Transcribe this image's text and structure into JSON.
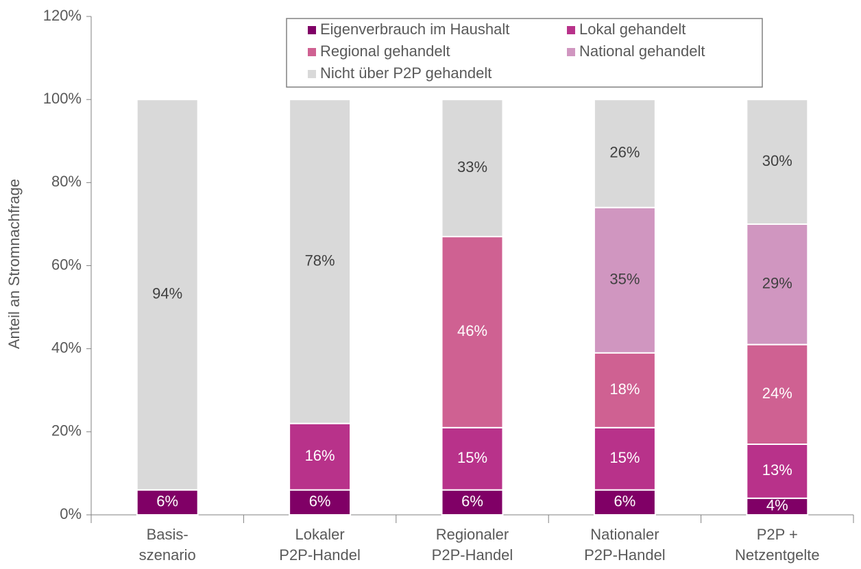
{
  "chart_data": {
    "type": "stacked_bar",
    "y_label": "Anteil an Stromnachfrage",
    "categories": [
      "Basis-\nszenario",
      "Lokaler\nP2P-Handel",
      "Regionaler\nP2P-Handel",
      "Nationaler\nP2P-Handel",
      "P2P +\nNetzentgelte"
    ],
    "series": [
      {
        "name": "Eigenverbrauch im Haushalt",
        "color": "#800066",
        "values": [
          6,
          6,
          6,
          6,
          4
        ],
        "value_labels": [
          "6%",
          "6%",
          "6%",
          "6%",
          "4%"
        ]
      },
      {
        "name": "Lokal gehandelt",
        "color": "#b8328a",
        "values": [
          null,
          16,
          15,
          15,
          13
        ],
        "value_labels": [
          null,
          "16%",
          "15%",
          "15%",
          "13%"
        ]
      },
      {
        "name": "Regional gehandelt",
        "color": "#cf6192",
        "values": [
          null,
          null,
          46,
          18,
          24
        ],
        "value_labels": [
          null,
          null,
          "46%",
          "18%",
          "24%"
        ]
      },
      {
        "name": "National gehandelt",
        "color": "#d096c0",
        "values": [
          null,
          null,
          null,
          35,
          29
        ],
        "value_labels": [
          null,
          null,
          null,
          "35%",
          "29%"
        ]
      },
      {
        "name": "Nicht über P2P gehandelt",
        "color": "#d9d9d9",
        "values": [
          94,
          78,
          33,
          26,
          30
        ],
        "value_labels": [
          "94%",
          "78%",
          "33%",
          "26%",
          "30%"
        ]
      }
    ],
    "ylim": [
      0,
      120
    ],
    "yticks": [
      {
        "value": 0,
        "label": "0%"
      },
      {
        "value": 20,
        "label": "20%"
      },
      {
        "value": 40,
        "label": "40%"
      },
      {
        "value": 60,
        "label": "60%"
      },
      {
        "value": 80,
        "label": "80%"
      },
      {
        "value": 100,
        "label": "100%"
      },
      {
        "value": 120,
        "label": "120%"
      }
    ],
    "legend": "top"
  }
}
